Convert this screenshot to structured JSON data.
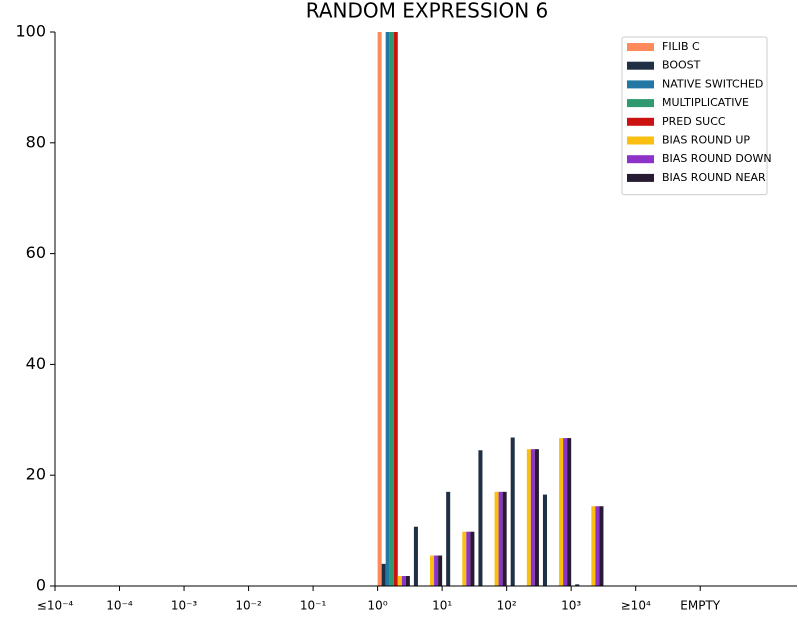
{
  "chart_data": {
    "type": "bar",
    "title": "RANDOM EXPRESSION 6",
    "categories": [
      "≤10⁻⁴",
      null,
      "10⁻⁴",
      null,
      "10⁻³",
      null,
      "10⁻²",
      null,
      "10⁻¹",
      null,
      "10⁰",
      null,
      "10¹",
      null,
      "10²",
      null,
      "10³",
      null,
      "≥10⁴",
      null,
      "EMPTY",
      null,
      null
    ],
    "series": [
      {
        "name": "FILIB C",
        "color": "#fc8a5c",
        "values": [
          0,
          0,
          0,
          0,
          0,
          0,
          0,
          0,
          0,
          0,
          100,
          0,
          0,
          0,
          0,
          0,
          0,
          0,
          0,
          0,
          0,
          0,
          0
        ]
      },
      {
        "name": "BOOST",
        "color": "#1f3044",
        "values": [
          0,
          0,
          0,
          0,
          0,
          0,
          0,
          0,
          0,
          0,
          4,
          10.7,
          17,
          24.5,
          26.8,
          16.5,
          0.3,
          0,
          0,
          0,
          0,
          0,
          0
        ]
      },
      {
        "name": "NATIVE SWITCHED",
        "color": "#2377a4",
        "values": [
          0,
          0,
          0,
          0,
          0,
          0,
          0,
          0,
          0,
          0,
          100,
          0,
          0,
          0,
          0,
          0,
          0,
          0,
          0,
          0,
          0,
          0,
          0
        ]
      },
      {
        "name": "MULTIPLICATIVE",
        "color": "#2e9a6e",
        "values": [
          0,
          0,
          0,
          0,
          0,
          0,
          0,
          0,
          0,
          0,
          100,
          0,
          0,
          0,
          0,
          0,
          0,
          0,
          0,
          0,
          0,
          0,
          0
        ]
      },
      {
        "name": "PRED SUCC",
        "color": "#cc1111",
        "values": [
          0,
          0,
          0,
          0,
          0,
          0,
          0,
          0,
          0,
          0,
          100,
          0,
          0,
          0,
          0,
          0,
          0,
          0,
          0,
          0,
          0,
          0,
          0
        ]
      },
      {
        "name": "BIAS ROUND UP",
        "color": "#fbbf12",
        "values": [
          0,
          0,
          0,
          0,
          0,
          0,
          0,
          0,
          0,
          0,
          1.8,
          5.5,
          9.8,
          17,
          24.7,
          26.7,
          14.4,
          0,
          0,
          0,
          0,
          0,
          0
        ]
      },
      {
        "name": "BIAS ROUND DOWN",
        "color": "#8e33c8",
        "values": [
          0,
          0,
          0,
          0,
          0,
          0,
          0,
          0,
          0,
          0,
          1.8,
          5.5,
          9.8,
          17,
          24.7,
          26.7,
          14.4,
          0,
          0,
          0,
          0,
          0,
          0
        ]
      },
      {
        "name": "BIAS ROUND NEAR",
        "color": "#271a33",
        "values": [
          0,
          0,
          0,
          0,
          0,
          0,
          0,
          0,
          0,
          0,
          1.8,
          5.5,
          9.8,
          17,
          24.7,
          26.7,
          14.4,
          0,
          0,
          0,
          0,
          0,
          0
        ]
      }
    ],
    "ylim": [
      0,
      100
    ],
    "yticks": [
      0,
      20,
      40,
      60,
      80,
      100
    ],
    "grid": false,
    "legend": "upper right"
  }
}
